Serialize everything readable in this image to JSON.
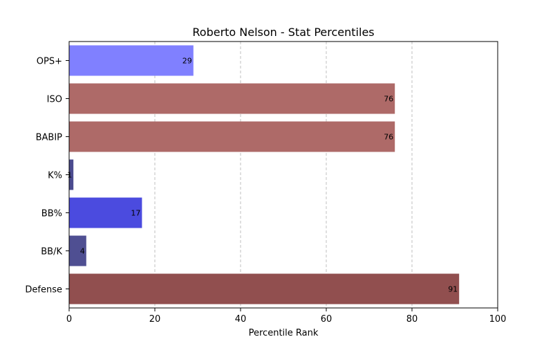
{
  "chart_data": {
    "type": "bar",
    "orientation": "horizontal",
    "title": "Roberto Nelson - Stat Percentiles",
    "xlabel": "Percentile Rank",
    "ylabel": "",
    "xlim": [
      0,
      100
    ],
    "xticks": [
      0,
      20,
      40,
      60,
      80,
      100
    ],
    "grid": "x-dashed",
    "categories": [
      "OPS+",
      "ISO",
      "BABIP",
      "K%",
      "BB%",
      "BB/K",
      "Defense"
    ],
    "values": [
      29,
      76,
      76,
      1,
      17,
      4,
      91
    ],
    "colors": [
      "#8080ff",
      "#ae6a68",
      "#ae6a68",
      "#4b4b8f",
      "#4b4bdf",
      "#4f4f92",
      "#914f4f"
    ]
  }
}
